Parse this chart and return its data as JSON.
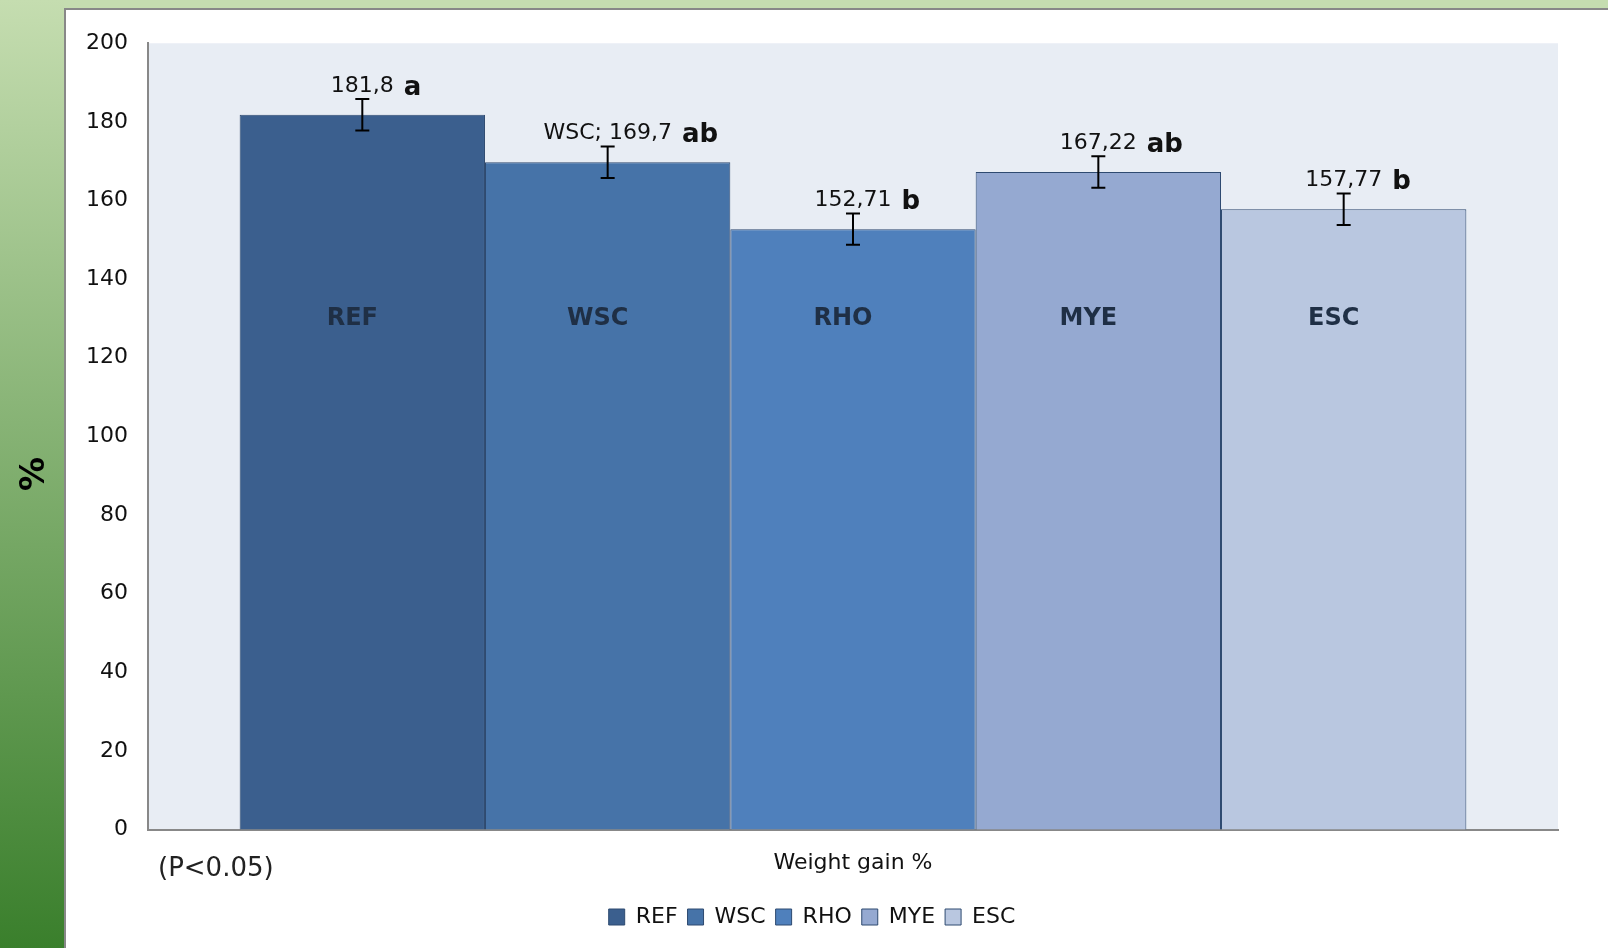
{
  "chart_data": {
    "type": "bar",
    "ylabel": "%",
    "categories": [
      "Weight gain %"
    ],
    "series": [
      {
        "name": "REF",
        "color": "#3b5f8e",
        "values": [
          181.8
        ],
        "errors": [
          4
        ],
        "value_labels": [
          "181,8"
        ]
      },
      {
        "name": "WSC",
        "color": "#4673a8",
        "values": [
          169.7
        ],
        "errors": [
          4
        ],
        "value_labels": [
          "WSC; 169,7"
        ]
      },
      {
        "name": "RHO",
        "color": "#4f80bc",
        "values": [
          152.71
        ],
        "errors": [
          4
        ],
        "value_labels": [
          "152,71"
        ]
      },
      {
        "name": "MYE",
        "color": "#95a9d1",
        "values": [
          167.22
        ],
        "errors": [
          4
        ],
        "value_labels": [
          "167,22"
        ]
      },
      {
        "name": "ESC",
        "color": "#b9c7e0",
        "values": [
          157.77
        ],
        "errors": [
          4
        ],
        "value_labels": [
          "157,77"
        ]
      }
    ],
    "annotations": [
      "a",
      "ab",
      "b",
      "ab",
      "b",
      "(P<0.05)"
    ],
    "ylim": [
      0,
      200
    ],
    "yticks": [
      0,
      20,
      40,
      60,
      80,
      100,
      120,
      140,
      160,
      180,
      200
    ],
    "grid": false,
    "legend": "bottom"
  }
}
